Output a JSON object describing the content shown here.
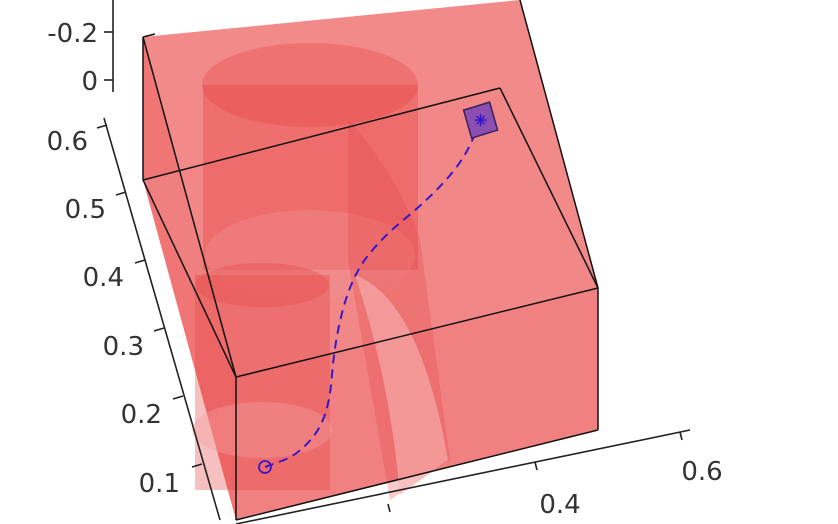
{
  "chart_data": {
    "type": "3d-scatter-path",
    "title": "",
    "zlabel": "",
    "ylabel": "",
    "xlabel": "",
    "ticks_top_axis": [
      "-0.2",
      "0"
    ],
    "ticks_left_axis": [
      "0.6",
      "0.5",
      "0.4",
      "0.3",
      "0.2",
      "0.1"
    ],
    "ticks_bottom_axis": [
      "0.4",
      "0.6"
    ],
    "colors": {
      "obstacle_fill": "#ee4444",
      "box_fill": "#f28080",
      "path": "#3a18c8",
      "goal_fill": "#8a4fb0"
    },
    "series": [
      {
        "style": "dashed",
        "path": [
          [
            0.1,
            0.1
          ],
          [
            0.16,
            0.12
          ],
          [
            0.21,
            0.18
          ],
          [
            0.22,
            0.3
          ],
          [
            0.25,
            0.4
          ],
          [
            0.3,
            0.46
          ],
          [
            0.38,
            0.52
          ],
          [
            0.44,
            0.58
          ],
          [
            0.47,
            0.64
          ]
        ],
        "start_marker": "circle",
        "end_marker": "star-box"
      }
    ],
    "grid": false,
    "legend": "none"
  }
}
